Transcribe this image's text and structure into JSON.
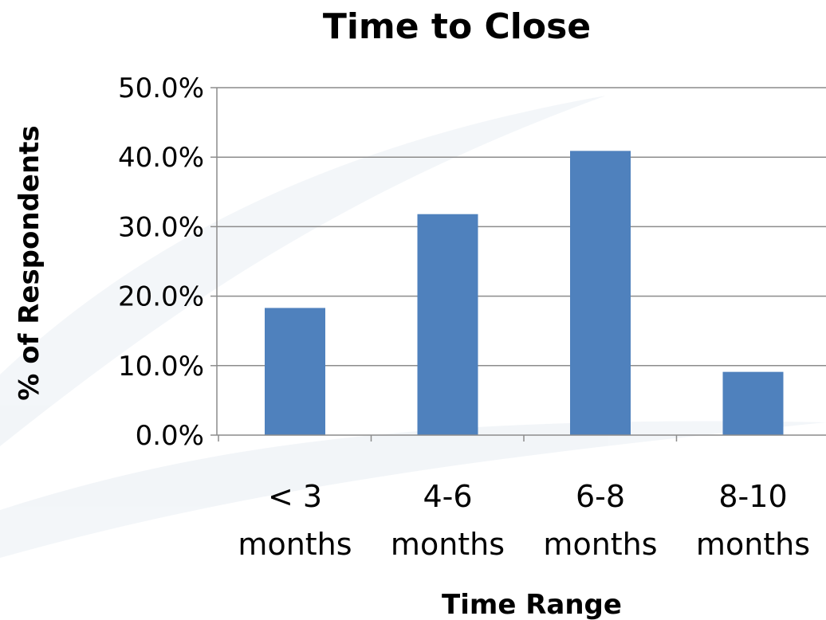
{
  "chart_data": {
    "type": "bar",
    "title": "Time to Close",
    "xlabel": "Time Range",
    "ylabel": "% of Respondents",
    "categories": [
      [
        "< 3",
        "months"
      ],
      [
        "4-6",
        "months"
      ],
      [
        "6-8",
        "months"
      ],
      [
        "8-10",
        "months"
      ]
    ],
    "values": [
      18.3,
      31.8,
      40.9,
      9.1
    ],
    "ylim": [
      0,
      50
    ],
    "yticks": [
      "0.0%",
      "10.0%",
      "20.0%",
      "30.0%",
      "40.0%",
      "50.0%"
    ],
    "grid": true,
    "legend": "none",
    "bar_color": "#4f81bd"
  }
}
